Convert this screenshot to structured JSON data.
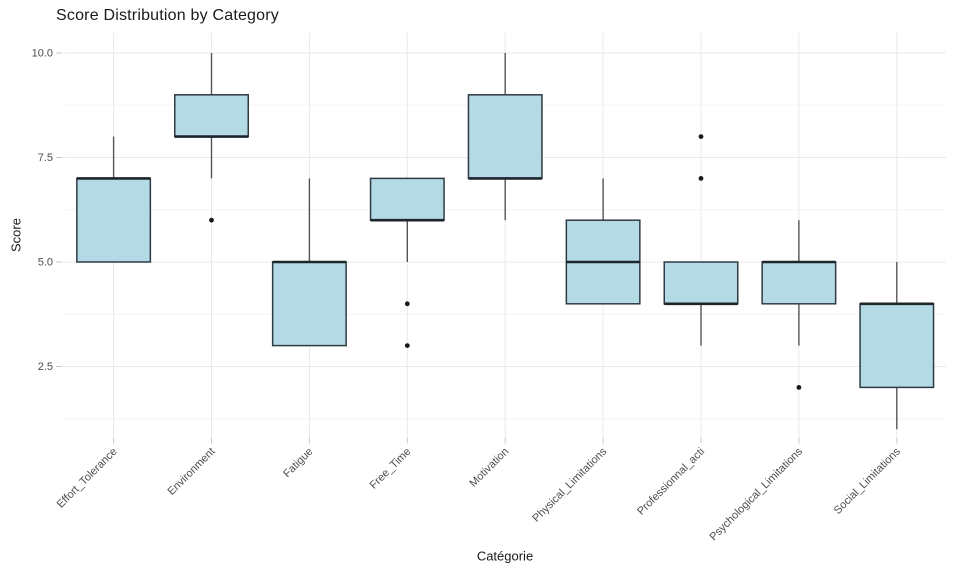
{
  "chart_data": {
    "type": "boxplot",
    "title": "Score Distribution by Category",
    "xlabel": "Catégorie",
    "ylabel": "Score",
    "legend": "none",
    "background": "#ffffff",
    "y_ticks": {
      "values": [
        10.0,
        7.5,
        5.0,
        2.5
      ],
      "labels": [
        "10.0",
        "7.5",
        "5.0",
        "2.5"
      ]
    },
    "y_minor_gridlines": [
      8.75,
      6.25,
      3.75,
      1.25
    ],
    "ylim": [
      0.85,
      10.45
    ],
    "categories": [
      "Effort_Tolerance",
      "Environment",
      "Fatigue",
      "Free_Time",
      "Motivation",
      "Physical_Limitations",
      "Professionnal_acti",
      "Psychological_Limitations",
      "Social_Limitations"
    ],
    "series": [
      {
        "category": "Effort_Tolerance",
        "whisker_low": 5,
        "q1": 5,
        "median": 7,
        "q3": 7,
        "whisker_high": 8,
        "outliers": []
      },
      {
        "category": "Environment",
        "whisker_low": 7,
        "q1": 8,
        "median": 8,
        "q3": 9,
        "whisker_high": 10,
        "outliers": [
          6
        ]
      },
      {
        "category": "Fatigue",
        "whisker_low": 3,
        "q1": 3,
        "median": 5,
        "q3": 5,
        "whisker_high": 7,
        "outliers": []
      },
      {
        "category": "Free_Time",
        "whisker_low": 5,
        "q1": 6,
        "median": 6,
        "q3": 7,
        "whisker_high": 7,
        "outliers": [
          4,
          3
        ]
      },
      {
        "category": "Motivation",
        "whisker_low": 6,
        "q1": 7,
        "median": 7,
        "q3": 9,
        "whisker_high": 10,
        "outliers": []
      },
      {
        "category": "Physical_Limitations",
        "whisker_low": 4,
        "q1": 4,
        "median": 5,
        "q3": 6,
        "whisker_high": 7,
        "outliers": []
      },
      {
        "category": "Professionnal_acti",
        "whisker_low": 3,
        "q1": 4,
        "median": 4,
        "q3": 5,
        "whisker_high": 5,
        "outliers": [
          8,
          7
        ]
      },
      {
        "category": "Psychological_Limitations",
        "whisker_low": 3,
        "q1": 4,
        "median": 5,
        "q3": 5,
        "whisker_high": 6,
        "outliers": [
          2
        ]
      },
      {
        "category": "Social_Limitations",
        "whisker_low": 1,
        "q1": 2,
        "median": 4,
        "q3": 4,
        "whisker_high": 5,
        "outliers": []
      }
    ],
    "colors": {
      "box_fill": "#b4dae6",
      "box_border": "#2f3b42",
      "median": "#1c262b",
      "whisker": "#555555",
      "outlier": "#1a1a1a",
      "grid_major": "#e9e9e9",
      "grid_minor": "#f4f4f4",
      "tick": "#c9c9c9",
      "tick_label": "#4d4d4d",
      "title": "#1a1a1a",
      "axis_title": "#1a1a1a"
    }
  }
}
